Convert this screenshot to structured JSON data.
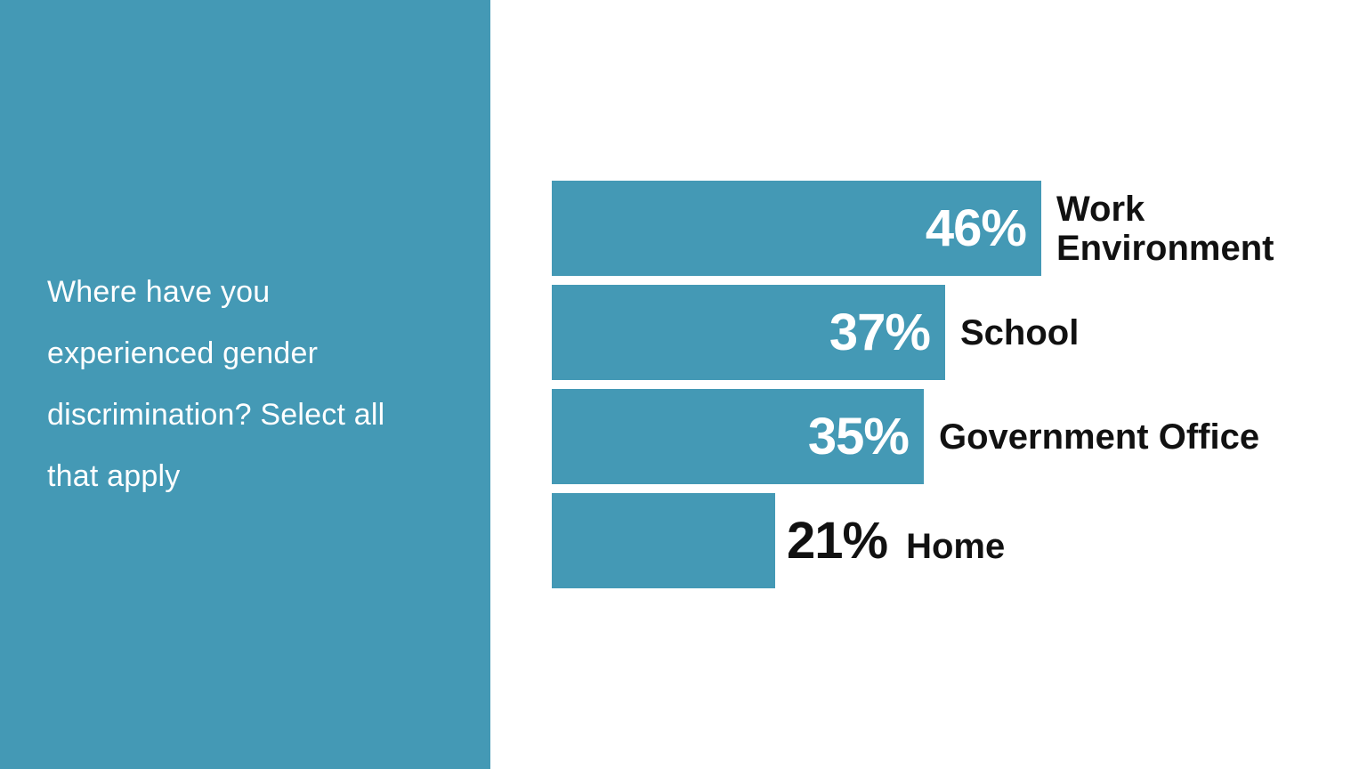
{
  "question_panel": {
    "text": "Where have you experienced gender discrimination? Select all that apply",
    "lines": [
      "Where have you",
      "experienced gender",
      "discrimination? Select all",
      "that apply"
    ],
    "background_color": "#4499B5",
    "text_color": "#FFFFFF"
  },
  "chart_data": {
    "type": "bar",
    "orientation": "horizontal",
    "title": "",
    "xlabel": "",
    "ylabel": "",
    "xlim": [
      0,
      46
    ],
    "grid": false,
    "legend": false,
    "categories": [
      "Work Environment",
      "School",
      "Government Office",
      "Home"
    ],
    "values": [
      46,
      37,
      35,
      21
    ],
    "bar_color": "#4499B5",
    "value_label_color_inside": "#FFFFFF",
    "value_label_color_outside": "#111111",
    "category_label_color": "#111111",
    "bars": [
      {
        "category": "Work Environment",
        "category_lines": [
          "Work",
          "Environment"
        ],
        "value": 46,
        "value_label": "46%",
        "value_position": "inside"
      },
      {
        "category": "School",
        "category_lines": [
          "School"
        ],
        "value": 37,
        "value_label": "37%",
        "value_position": "inside"
      },
      {
        "category": "Government Office",
        "category_lines": [
          "Government Office"
        ],
        "value": 35,
        "value_label": "35%",
        "value_position": "inside"
      },
      {
        "category": "Home",
        "category_lines": [
          "Home"
        ],
        "value": 21,
        "value_label": "21%",
        "value_position": "outside"
      }
    ]
  }
}
